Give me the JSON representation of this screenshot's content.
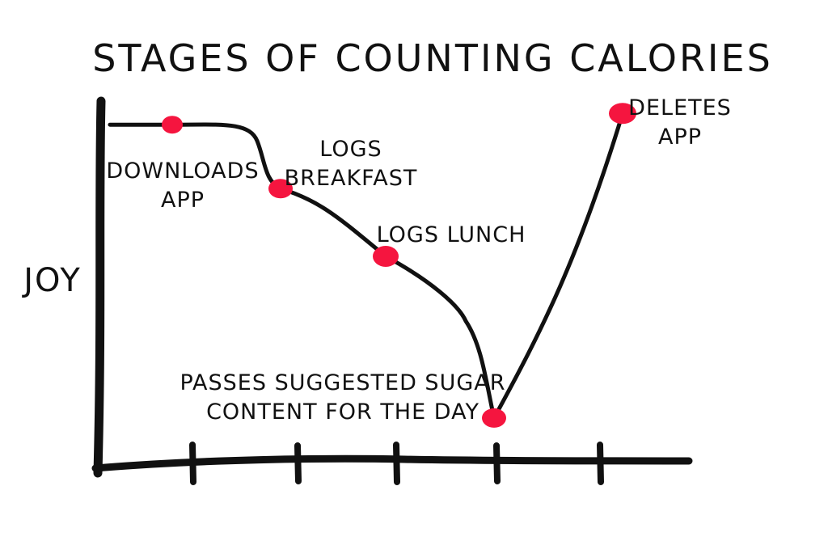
{
  "chart_data": {
    "type": "line",
    "title": "STAGES OF COUNTING CALORIES",
    "xlabel": "",
    "ylabel": "JOY",
    "ylim": [
      0,
      100
    ],
    "grid": false,
    "legend": "none",
    "line_color": "#111111",
    "marker_color": "#f5153f",
    "x": [
      0,
      1,
      2,
      3,
      4
    ],
    "values": [
      92,
      75,
      57,
      14,
      95
    ],
    "labels": [
      [
        "DOWNLOADS",
        "APP"
      ],
      [
        "LOGS",
        "BREAKFAST"
      ],
      [
        "LOGS LUNCH"
      ],
      [
        "PASSES SUGGESTED SUGAR",
        "CONTENT FOR THE DAY"
      ],
      [
        "DELETES",
        "APP"
      ]
    ]
  }
}
